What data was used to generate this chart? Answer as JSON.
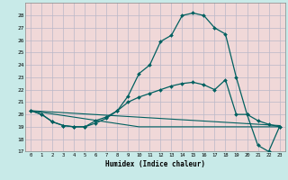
{
  "xlabel": "Humidex (Indice chaleur)",
  "xlim": [
    -0.5,
    23.5
  ],
  "ylim": [
    17,
    29
  ],
  "yticks": [
    17,
    18,
    19,
    20,
    21,
    22,
    23,
    24,
    25,
    26,
    27,
    28
  ],
  "xticks": [
    0,
    1,
    2,
    3,
    4,
    5,
    6,
    7,
    8,
    9,
    10,
    11,
    12,
    13,
    14,
    15,
    16,
    17,
    18,
    19,
    20,
    21,
    22,
    23
  ],
  "figure_bg": "#c8eae8",
  "plot_bg": "#f0d8d8",
  "grid_color": "#b8b8c8",
  "line_color": "#006060",
  "line1_x": [
    0,
    1,
    2,
    3,
    4,
    5,
    6,
    7,
    8,
    9,
    10,
    11,
    12,
    13,
    14,
    15,
    16,
    17,
    18,
    19,
    20,
    21,
    22,
    23
  ],
  "line1_y": [
    20.3,
    20.0,
    19.4,
    19.1,
    19.0,
    19.0,
    19.3,
    19.7,
    20.3,
    21.5,
    23.3,
    24.0,
    25.9,
    26.4,
    28.0,
    28.2,
    28.0,
    27.0,
    26.5,
    23.0,
    20.0,
    17.5,
    17.0,
    19.0
  ],
  "line2_x": [
    0,
    1,
    2,
    3,
    4,
    5,
    6,
    7,
    8,
    9,
    10,
    11,
    12,
    13,
    14,
    15,
    16,
    17,
    18,
    19,
    20,
    21,
    22,
    23
  ],
  "line2_y": [
    20.3,
    20.0,
    19.4,
    19.1,
    19.0,
    19.0,
    19.5,
    19.8,
    20.3,
    21.0,
    21.4,
    21.7,
    22.0,
    22.3,
    22.5,
    22.6,
    22.4,
    22.0,
    22.8,
    20.0,
    20.0,
    19.5,
    19.2,
    19.0
  ],
  "line3_x": [
    0,
    23
  ],
  "line3_y": [
    20.3,
    19.1
  ],
  "line4_x": [
    0,
    10,
    15,
    19,
    23
  ],
  "line4_y": [
    20.3,
    19.0,
    19.0,
    19.0,
    19.0
  ]
}
